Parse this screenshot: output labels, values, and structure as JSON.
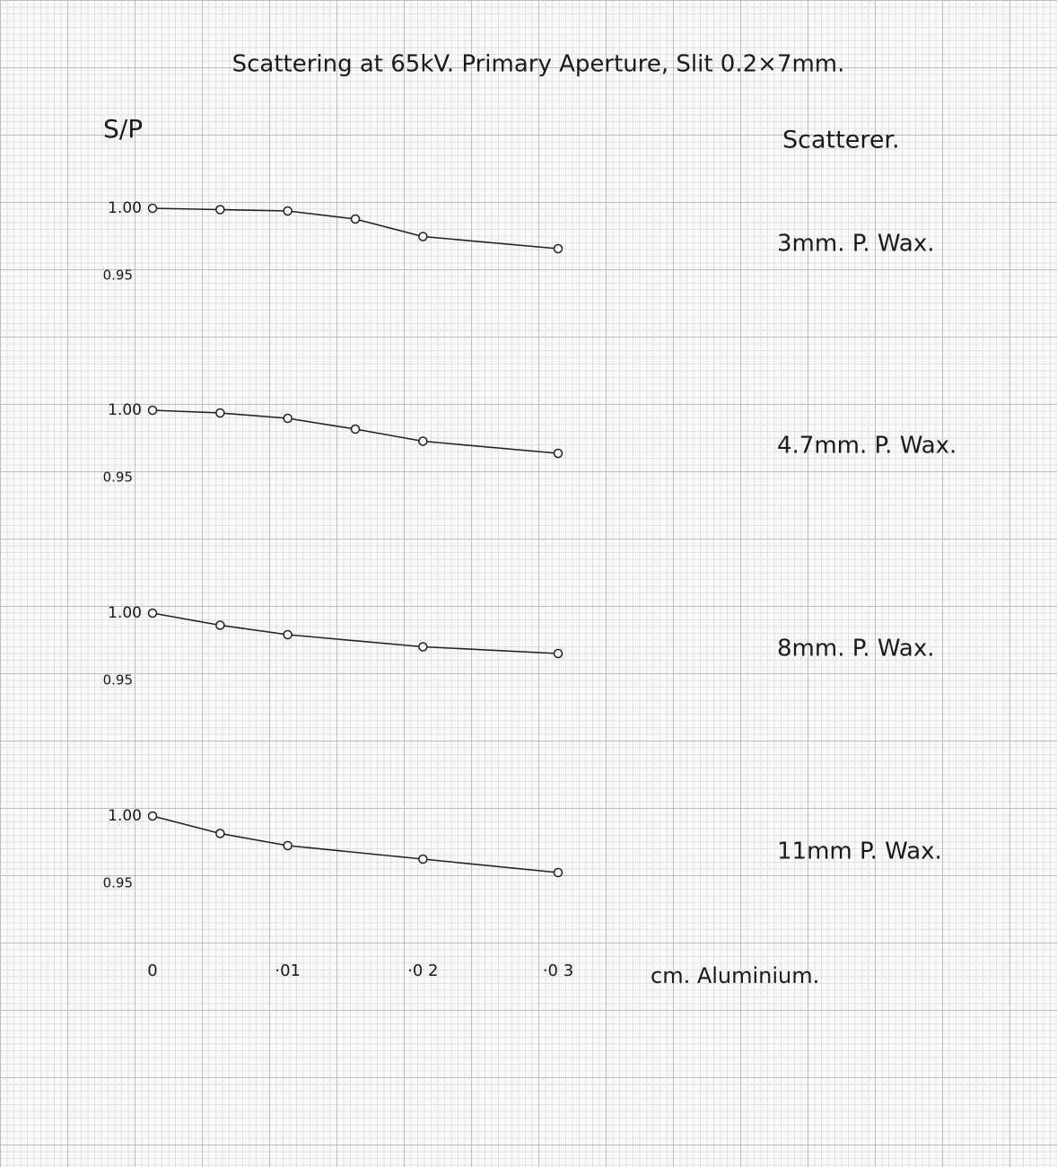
{
  "chart_data": {
    "type": "line",
    "title": "Scattering at 65kV. Primary Aperture, Slit 0.2×7mm.",
    "y_label": "S/P",
    "x_label": "cm. Aluminium.",
    "legend_title": "Scatterer.",
    "xlim": [
      0,
      0.03
    ],
    "xticks": [
      0,
      {
        "value": 0.01,
        "label": "·01"
      },
      {
        "value": 0.02,
        "label": "·0 2"
      },
      {
        "value": 0.03,
        "label": "·0 3"
      }
    ],
    "color": "#222222",
    "series": [
      {
        "name": "3mm. P. Wax.",
        "x": [
          0,
          0.005,
          0.01,
          0.015,
          0.02,
          0.03
        ],
        "values": [
          1.0,
          0.999,
          0.998,
          0.992,
          0.979,
          0.97
        ],
        "ylim": [
          0.94,
          1.02
        ],
        "yticks": [
          {
            "value": 1,
            "label": "1.00"
          },
          0.95
        ]
      },
      {
        "name": "4.7mm. P. Wax.",
        "x": [
          0,
          0.005,
          0.01,
          0.015,
          0.02,
          0.03
        ],
        "values": [
          1.0,
          0.998,
          0.994,
          0.986,
          0.977,
          0.968
        ],
        "ylim": [
          0.94,
          1.02
        ],
        "yticks": [
          {
            "value": 1,
            "label": "1.00"
          },
          0.95
        ]
      },
      {
        "name": "8mm. P. Wax.",
        "x": [
          0,
          0.005,
          0.01,
          0.02,
          0.03
        ],
        "values": [
          1.0,
          0.991,
          0.984,
          0.975,
          0.97
        ],
        "ylim": [
          0.94,
          1.02
        ],
        "yticks": [
          {
            "value": 1,
            "label": "1.00"
          },
          0.95
        ]
      },
      {
        "name": "11mm P. Wax.",
        "x": [
          0,
          0.005,
          0.01,
          0.02,
          0.03
        ],
        "values": [
          1.0,
          0.987,
          0.978,
          0.968,
          0.958
        ],
        "ylim": [
          0.94,
          1.02
        ],
        "yticks": [
          {
            "value": 1,
            "label": "1.00"
          },
          0.95
        ]
      }
    ]
  }
}
